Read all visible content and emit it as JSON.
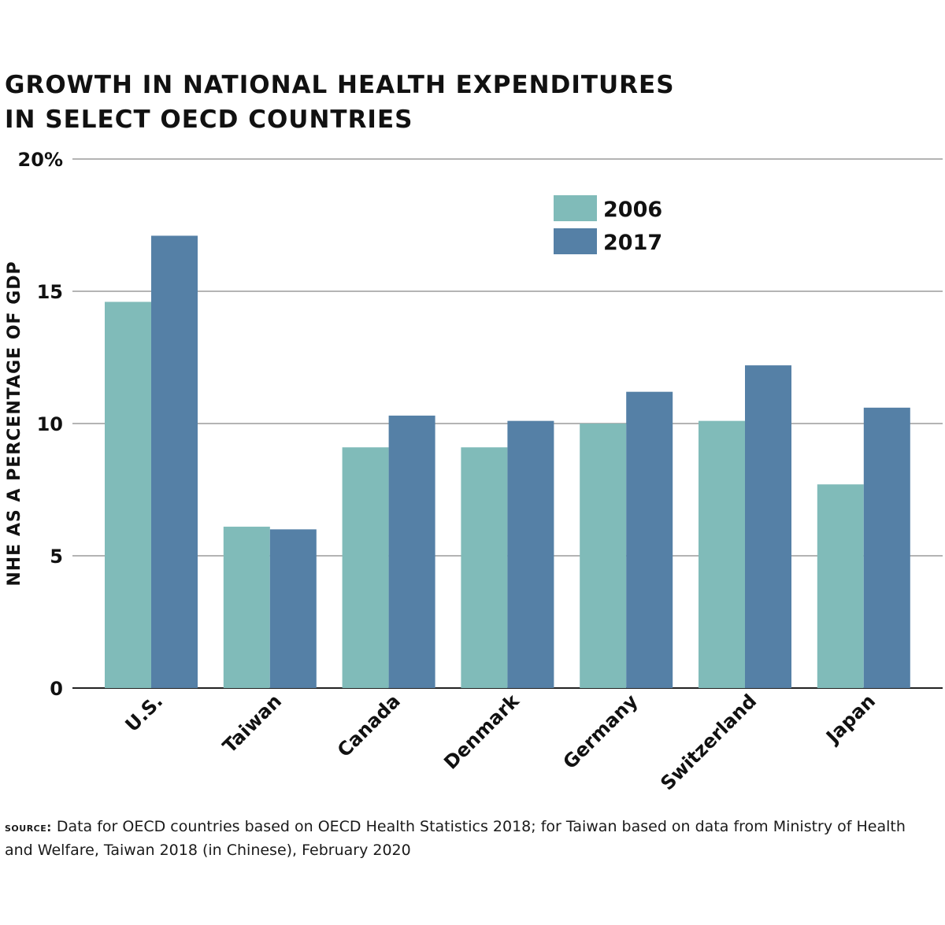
{
  "title_lines": [
    "GROWTH IN NATIONAL HEALTH EXPENDITURES",
    "IN SELECT OECD COUNTRIES"
  ],
  "source": {
    "label": "SOURCE:",
    "text": "Data for OECD countries based on OECD Health Statistics 2018; for Taiwan based on data from Ministry of Health and Welfare, Taiwan 2018 (in Chinese), February 2020"
  },
  "colors": {
    "series_2006": "#80bbb9",
    "series_2017": "#5580a6",
    "grid": "#888888",
    "axis": "#222222",
    "text": "#111111"
  },
  "chart_data": {
    "type": "bar",
    "ylabel": "NHE AS A PERCENTAGE OF GDP",
    "ylim": [
      0,
      20
    ],
    "yticks": [
      0,
      5,
      10,
      15,
      20
    ],
    "ytick_labels": [
      "0",
      "5",
      "10",
      "15",
      "20%"
    ],
    "grid": true,
    "legend_position": "top-right",
    "categories": [
      "U.S.",
      "Taiwan",
      "Canada",
      "Denmark",
      "Germany",
      "Switzerland",
      "Japan"
    ],
    "series": [
      {
        "name": "2006",
        "color": "#80bbb9",
        "values": [
          14.6,
          6.1,
          9.1,
          9.1,
          10.0,
          10.1,
          7.7
        ]
      },
      {
        "name": "2017",
        "color": "#5580a6",
        "values": [
          17.1,
          6.0,
          10.3,
          10.1,
          11.2,
          12.2,
          10.6
        ]
      }
    ]
  }
}
